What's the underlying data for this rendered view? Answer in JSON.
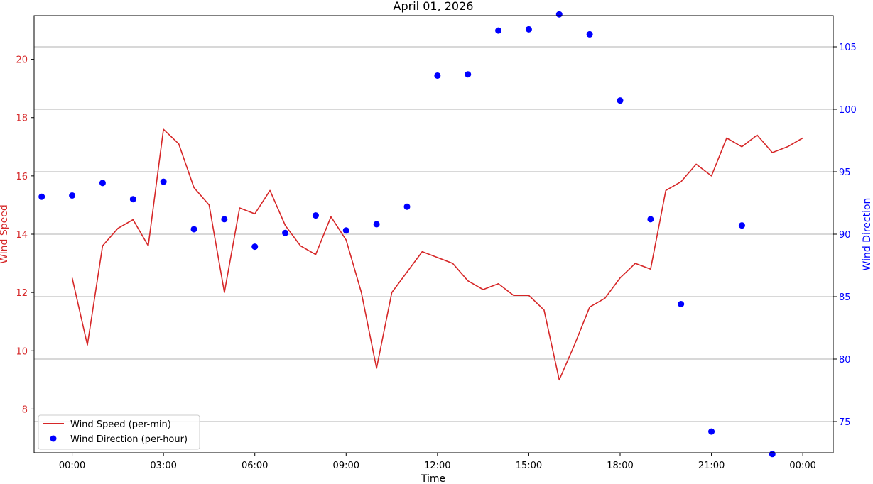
{
  "chart_data": {
    "type": "line",
    "title": "April 01, 2026",
    "xlabel": "Time",
    "ylabel_left": "Wind Speed",
    "ylabel_right": "Wind Direction",
    "x_unit": "hours since 00:00 (April 01, 2026)",
    "xlim": [
      -1.25,
      25
    ],
    "x_ticks": [
      {
        "value": 0,
        "label": "00:00"
      },
      {
        "value": 3,
        "label": "03:00"
      },
      {
        "value": 6,
        "label": "06:00"
      },
      {
        "value": 9,
        "label": "09:00"
      },
      {
        "value": 12,
        "label": "12:00"
      },
      {
        "value": 15,
        "label": "15:00"
      },
      {
        "value": 18,
        "label": "18:00"
      },
      {
        "value": 21,
        "label": "21:00"
      },
      {
        "value": 24,
        "label": "00:00"
      }
    ],
    "ylim_left": [
      6.5,
      21.5
    ],
    "yticks_left": [
      8,
      10,
      12,
      14,
      16,
      18,
      20
    ],
    "ylim_right": [
      72.5,
      107.5
    ],
    "yticks_right": [
      75,
      80,
      85,
      90,
      95,
      100,
      105
    ],
    "grid": "horizontal, right axis",
    "legend_position": "lower-left",
    "colors": {
      "speed": "#d62728",
      "direction": "#0000ff",
      "grid": "#b0b0b0"
    },
    "series": [
      {
        "name": "Wind Speed (per-min)",
        "kind": "line",
        "axis": "left",
        "x": [
          0,
          0.5,
          1,
          1.5,
          2,
          2.5,
          3,
          3.5,
          4,
          4.5,
          5,
          5.5,
          6,
          6.5,
          7,
          7.5,
          8,
          8.5,
          9,
          9.5,
          10,
          10.5,
          11,
          11.5,
          12,
          12.5,
          13,
          13.5,
          14,
          14.5,
          15,
          15.5,
          16,
          16.5,
          17,
          17.5,
          18,
          18.5,
          19,
          19.5,
          20,
          20.5,
          21,
          21.5,
          22,
          22.5,
          23,
          23.5,
          24
        ],
        "y": [
          12.5,
          10.2,
          13.6,
          14.2,
          14.5,
          13.6,
          17.6,
          17.1,
          15.6,
          15.0,
          12.0,
          14.9,
          14.7,
          15.5,
          14.3,
          13.6,
          13.3,
          14.6,
          13.8,
          12.0,
          9.4,
          12.0,
          12.7,
          13.4,
          13.2,
          13.0,
          12.4,
          12.1,
          12.3,
          11.9,
          11.9,
          11.4,
          9.0,
          10.2,
          11.5,
          11.8,
          12.5,
          13.0,
          12.8,
          15.5,
          15.8,
          16.4,
          16.0,
          17.3,
          17.0,
          17.4,
          16.8,
          17.0,
          17.3
        ]
      },
      {
        "name": "Wind Direction (per-hour)",
        "kind": "scatter",
        "axis": "right",
        "x": [
          -1,
          0,
          1,
          2,
          3,
          4,
          5,
          6,
          7,
          8,
          9,
          10,
          11,
          12,
          13,
          14,
          15,
          16,
          17,
          18,
          19,
          20,
          21,
          22,
          23
        ],
        "y": [
          93.0,
          93.1,
          94.1,
          92.8,
          94.2,
          90.4,
          91.2,
          89.0,
          90.1,
          91.5,
          90.3,
          90.8,
          92.2,
          102.7,
          102.8,
          106.3,
          106.4,
          107.6,
          106.0,
          100.7,
          91.2,
          84.4,
          74.2,
          90.7,
          72.4
        ]
      }
    ]
  }
}
